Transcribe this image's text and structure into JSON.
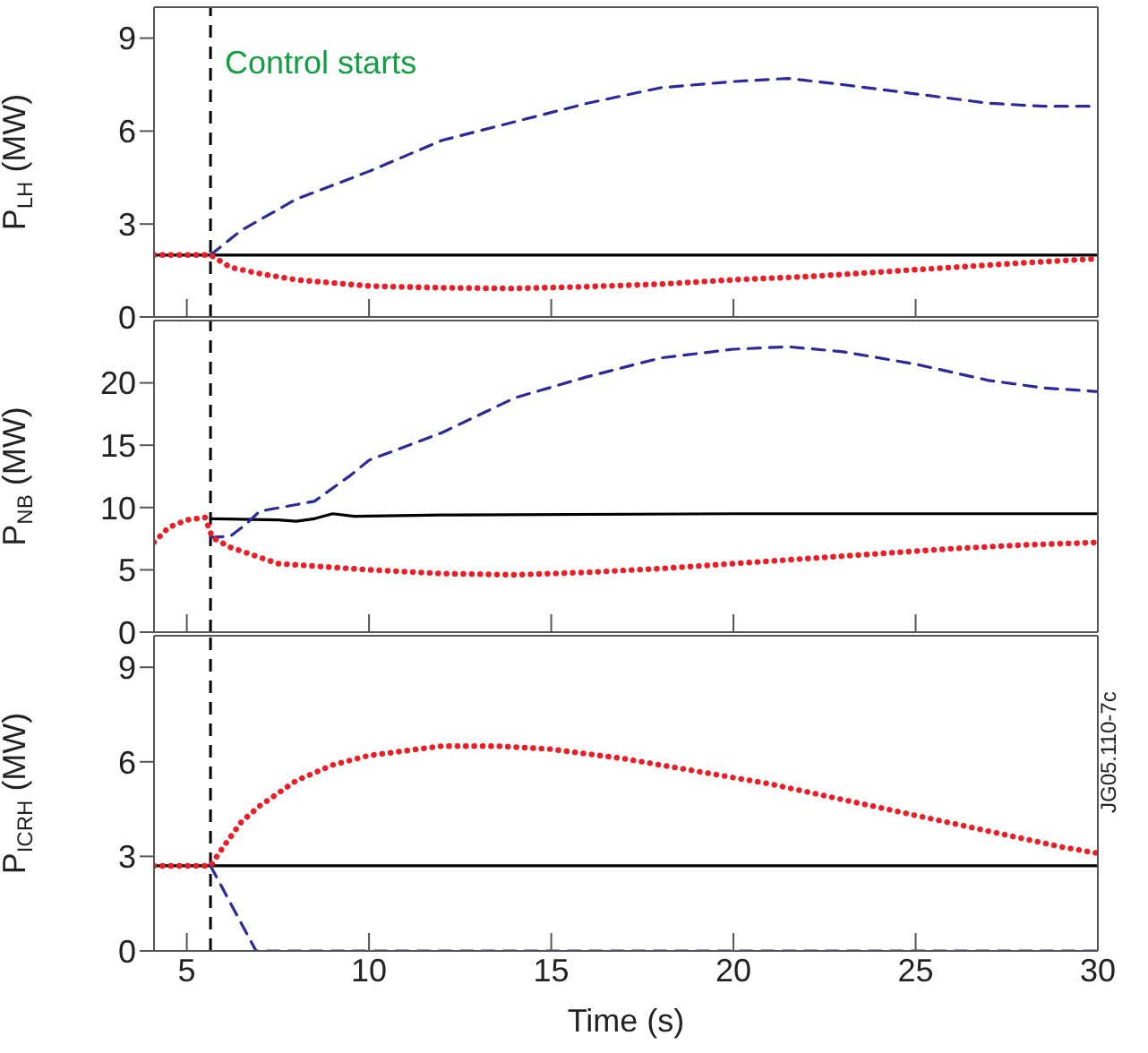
{
  "chart_data": [
    {
      "type": "line",
      "ylabel": "P$_{LH}$ (MW)",
      "xlim": [
        4.1,
        30
      ],
      "xticks": [
        5,
        10,
        15,
        20,
        25,
        30
      ],
      "ylim": [
        0,
        10
      ],
      "yticks": [
        0,
        3,
        6,
        9
      ],
      "tick_labels": "y",
      "marker": "none",
      "ref_lines": [
        {
          "axis": "x",
          "value": 5.65,
          "label": "Control starts",
          "color": "#000000",
          "line_style": "dashed"
        }
      ],
      "series": [
        {
          "color": "#000000",
          "line_style": "solid",
          "x": [
            4.1,
            30
          ],
          "values": [
            2.0,
            2.0
          ]
        },
        {
          "color": "#2a2a9c",
          "line_style": "dashed",
          "x": [
            5.65,
            6.5,
            8,
            10,
            12,
            14,
            16,
            18,
            20,
            21.5,
            23,
            25,
            27,
            28.5,
            30
          ],
          "values": [
            2.0,
            2.8,
            3.8,
            4.7,
            5.7,
            6.3,
            6.9,
            7.4,
            7.6,
            7.7,
            7.5,
            7.2,
            6.9,
            6.8,
            6.8
          ]
        },
        {
          "color": "#ee1c25",
          "line_style": "dotted",
          "x": [
            4.1,
            5.65,
            6.2,
            7,
            8,
            10,
            12,
            14,
            16,
            18,
            20,
            22,
            24,
            26,
            28,
            30
          ],
          "values": [
            2.0,
            2.0,
            1.6,
            1.4,
            1.2,
            1.0,
            0.94,
            0.92,
            0.98,
            1.06,
            1.2,
            1.3,
            1.45,
            1.6,
            1.75,
            1.88
          ]
        }
      ]
    },
    {
      "type": "line",
      "ylabel": "P$_{NB}$ (MW)",
      "xlim": [
        4.1,
        30
      ],
      "xticks": [
        5,
        10,
        15,
        20,
        25,
        30
      ],
      "ylim": [
        0,
        25
      ],
      "yticks": [
        0,
        5,
        10,
        15,
        20
      ],
      "tick_labels": "y",
      "marker": "none",
      "ref_lines": [
        {
          "axis": "x",
          "value": 5.65,
          "color": "#000000",
          "line_style": "dashed"
        }
      ],
      "series": [
        {
          "color": "#000000",
          "line_style": "solid",
          "x": [
            5.65,
            7.5,
            8,
            8.5,
            9,
            9.6,
            12,
            20,
            30
          ],
          "values": [
            9.1,
            9.0,
            8.9,
            9.1,
            9.5,
            9.3,
            9.4,
            9.5,
            9.5
          ]
        },
        {
          "color": "#2a2a9c",
          "line_style": "dashed",
          "x": [
            5.65,
            6.2,
            6.6,
            7,
            8.5,
            9.5,
            10,
            12,
            14,
            16,
            18,
            20,
            21.5,
            23,
            25,
            27,
            28.5,
            30
          ],
          "values": [
            7.6,
            7.7,
            8.6,
            9.7,
            10.5,
            12.6,
            13.8,
            16.0,
            18.8,
            20.5,
            22.0,
            22.7,
            22.9,
            22.5,
            21.5,
            20.2,
            19.6,
            19.3
          ]
        },
        {
          "color": "#ee1c25",
          "line_style": "dotted",
          "x": [
            4.1,
            4.5,
            5,
            5.5,
            5.7,
            6.2,
            7,
            7.5,
            8.5,
            10,
            12,
            14,
            16,
            18,
            20,
            22,
            24,
            26,
            28,
            30
          ],
          "values": [
            7.2,
            8.4,
            9.0,
            9.2,
            7.6,
            6.8,
            6.0,
            5.5,
            5.3,
            5.0,
            4.7,
            4.6,
            4.8,
            5.1,
            5.5,
            5.9,
            6.3,
            6.7,
            7.0,
            7.2
          ]
        }
      ]
    },
    {
      "type": "line",
      "ylabel": "P$_{ICRH}$ (MW)",
      "xlabel": "Time (s)",
      "xlim": [
        4.1,
        30
      ],
      "xticks": [
        5,
        10,
        15,
        20,
        25,
        30
      ],
      "ylim": [
        0,
        10
      ],
      "yticks": [
        0,
        3,
        6,
        9
      ],
      "marker": "none",
      "annotations": [
        "JG05.110-7c"
      ],
      "ref_lines": [
        {
          "axis": "x",
          "value": 5.65,
          "color": "#000000",
          "line_style": "dashed"
        }
      ],
      "series": [
        {
          "color": "#000000",
          "line_style": "solid",
          "x": [
            4.1,
            30
          ],
          "values": [
            2.7,
            2.7
          ]
        },
        {
          "color": "#2a2a9c",
          "line_style": "dashed",
          "x": [
            5.65,
            6.9,
            30
          ],
          "values": [
            2.7,
            0,
            0
          ]
        },
        {
          "color": "#ee1c25",
          "line_style": "dotted",
          "x": [
            4.1,
            5.65,
            6,
            6.5,
            7,
            8,
            9,
            10,
            12,
            13.5,
            15,
            17,
            19,
            21,
            23,
            25,
            27,
            29,
            30
          ],
          "values": [
            2.7,
            2.7,
            3.3,
            4.1,
            4.6,
            5.4,
            5.9,
            6.2,
            6.5,
            6.5,
            6.4,
            6.1,
            5.7,
            5.3,
            4.8,
            4.3,
            3.8,
            3.3,
            3.1
          ]
        }
      ]
    }
  ]
}
